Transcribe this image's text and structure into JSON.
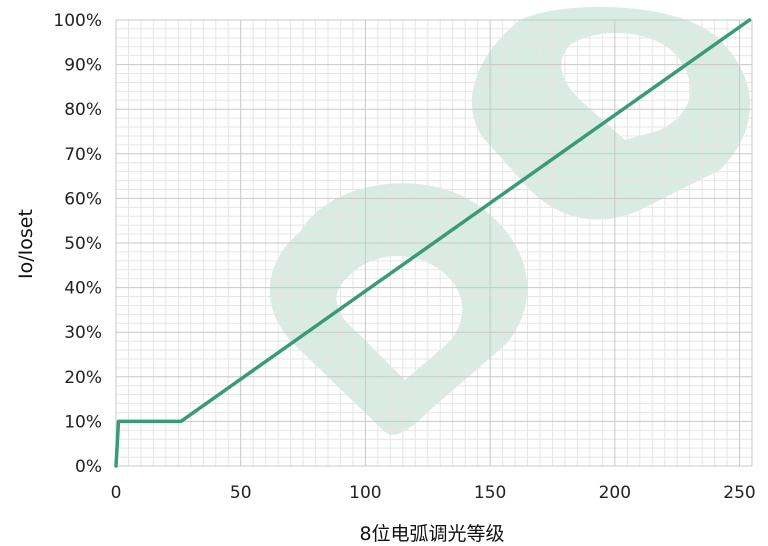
{
  "chart_data": {
    "type": "line",
    "xlabel": "8位电弧调光等级",
    "ylabel": "Io/Ioset",
    "xlim": [
      0,
      255
    ],
    "ylim": [
      0,
      100
    ],
    "x_ticks": [
      "0",
      "50",
      "100",
      "150",
      "200",
      "250"
    ],
    "y_ticks": [
      "0%",
      "10%",
      "20%",
      "30%",
      "40%",
      "50%",
      "60%",
      "70%",
      "80%",
      "90%",
      "100%"
    ],
    "grid": true,
    "series": [
      {
        "x": [
          0,
          1,
          26,
          254
        ],
        "y": [
          0,
          10,
          10,
          100
        ]
      }
    ],
    "colors": {
      "line": "#3a9a78",
      "grid_major": "#c8c8c8",
      "grid_minor": "#e6e6e6",
      "watermark": "#d9ece4"
    }
  }
}
